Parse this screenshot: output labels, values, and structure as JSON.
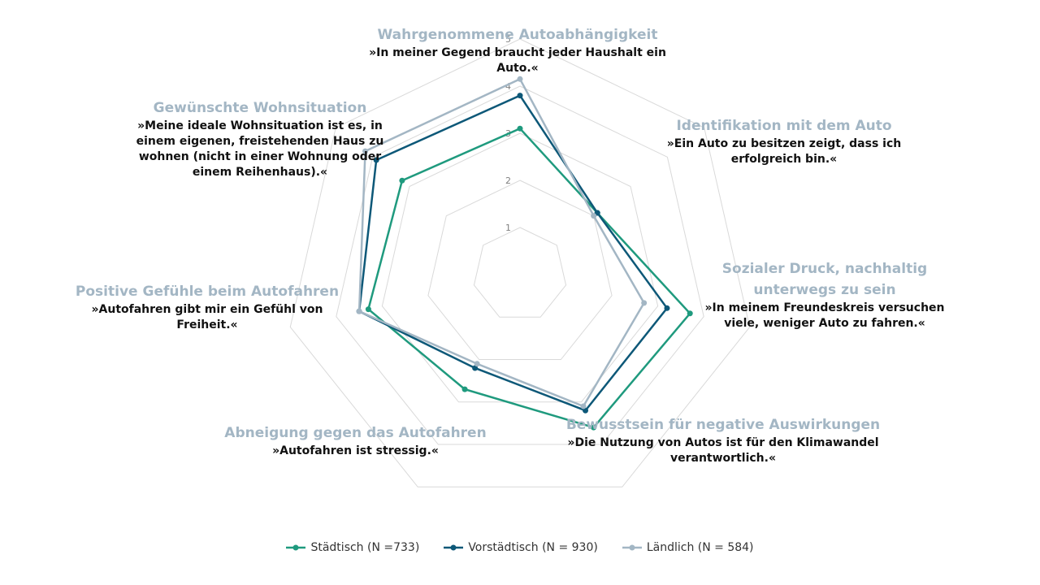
{
  "chart_data": {
    "type": "radar",
    "scale": {
      "min": 0,
      "max": 5,
      "ticks": [
        1,
        2,
        3,
        4,
        5
      ]
    },
    "axes": [
      {
        "title": "Wahrgenommene Autoabhängigkeit",
        "quote": "»In meiner Gegend braucht jeder Haushalt ein Auto.«"
      },
      {
        "title": "Identifikation mit dem Auto",
        "quote": "»Ein Auto zu besitzen zeigt, dass ich erfolgreich bin.«"
      },
      {
        "title": "Sozialer Druck, nachhaltig unterwegs zu sein",
        "quote": "»In meinem Freundeskreis versuchen viele, weniger Auto zu fahren.«"
      },
      {
        "title": "Bewusstsein für negative Auswirkungen",
        "quote": "»Die Nutzung von Autos ist für den Klimawandel verantwortlich.«"
      },
      {
        "title": "Abneigung gegen das Autofahren",
        "quote": "»Autofahren ist stressig.«"
      },
      {
        "title": "Positive Gefühle beim Autofahren",
        "quote": "»Autofahren gibt mir ein Gefühl von Freiheit.«"
      },
      {
        "title": "Gewünschte Wohnsituation",
        "quote": "»Meine ideale Wohnsituation ist es, in einem eigenen, freistehenden Haus zu wohnen (nicht in einer Wohnung oder einem Reihenhaus).«"
      }
    ],
    "series": [
      {
        "name": "Städtisch (N =733)",
        "color": "#1f9a7e",
        "values": [
          3.1,
          2.1,
          3.7,
          3.6,
          2.7,
          3.3,
          3.2
        ]
      },
      {
        "name": "Vorstädtisch (N = 930)",
        "color": "#0d5878",
        "values": [
          3.8,
          2.1,
          3.2,
          3.2,
          2.2,
          3.5,
          3.9
        ]
      },
      {
        "name": "Ländlich (N = 584)",
        "color": "#a3b6c4",
        "values": [
          4.15,
          2.0,
          2.7,
          3.1,
          2.1,
          3.5,
          4.2
        ]
      }
    ],
    "legend_position": "bottom",
    "grid": true
  }
}
